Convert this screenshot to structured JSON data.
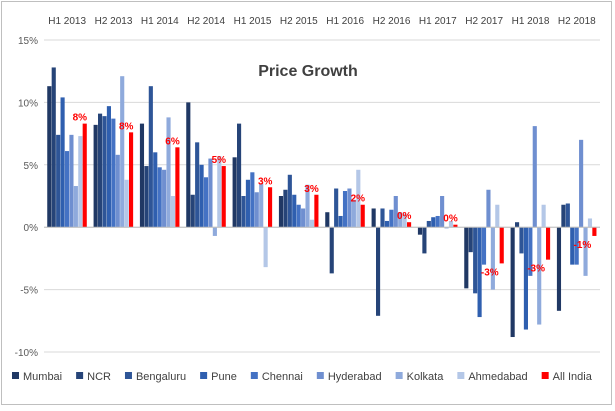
{
  "chart_data": {
    "type": "bar",
    "title": "Price Growth",
    "categories": [
      "H1 2013",
      "H2 2013",
      "H1 2014",
      "H2 2014",
      "H1 2015",
      "H2 2015",
      "H1 2016",
      "H2 2016",
      "H1 2017",
      "H2 2017",
      "H1 2018",
      "H2 2018"
    ],
    "ylim": [
      -10,
      15
    ],
    "yticks": [
      -10,
      -5,
      0,
      5,
      10,
      15
    ],
    "ytick_labels": [
      "-10%",
      "-5%",
      "0%",
      "5%",
      "10%",
      "15%"
    ],
    "xlabel": "",
    "ylabel": "",
    "grid": true,
    "legend_position": "bottom",
    "series": [
      {
        "name": "Mumbai",
        "color": "#203864",
        "values": [
          11.3,
          8.2,
          8.3,
          10.0,
          5.6,
          2.5,
          1.2,
          1.5,
          -0.6,
          -4.9,
          -8.8,
          -6.7
        ]
      },
      {
        "name": "NCR",
        "color": "#264478",
        "values": [
          12.8,
          9.1,
          4.9,
          2.6,
          8.3,
          3.0,
          -3.7,
          -7.1,
          -2.1,
          -2.0,
          0.4,
          1.8
        ]
      },
      {
        "name": "Bengaluru",
        "color": "#2E5597",
        "values": [
          7.4,
          8.9,
          11.3,
          6.8,
          2.5,
          4.2,
          3.1,
          1.5,
          0.5,
          -5.3,
          -2.1,
          1.9
        ]
      },
      {
        "name": "Pune",
        "color": "#2F5FAF",
        "values": [
          10.4,
          9.7,
          6.0,
          5.0,
          3.8,
          2.6,
          0.9,
          0.5,
          0.8,
          -7.2,
          -8.2,
          -3.0
        ]
      },
      {
        "name": "Chennai",
        "color": "#4472C4",
        "values": [
          6.1,
          8.7,
          4.8,
          4.0,
          4.4,
          1.8,
          2.9,
          1.4,
          0.9,
          -3.0,
          -3.9,
          -3.0
        ]
      },
      {
        "name": "Hyderabad",
        "color": "#6F8FD0",
        "values": [
          7.4,
          5.8,
          4.6,
          5.5,
          2.8,
          1.5,
          3.1,
          2.5,
          2.5,
          3.0,
          8.1,
          7.0
        ]
      },
      {
        "name": "Kolkata",
        "color": "#8FAADC",
        "values": [
          3.3,
          12.1,
          8.8,
          -0.7,
          3.5,
          3.4,
          2.2,
          1.2,
          -0.1,
          -5.0,
          -7.8,
          -3.9
        ]
      },
      {
        "name": "Ahmedabad",
        "color": "#B4C7E7",
        "values": [
          7.3,
          3.8,
          2.5,
          5.7,
          -3.2,
          0.6,
          4.6,
          1.1,
          0.5,
          1.8,
          1.8,
          0.7
        ]
      },
      {
        "name": "All India",
        "color": "#FF0000",
        "values": [
          8.3,
          7.6,
          6.4,
          4.9,
          3.2,
          2.6,
          1.8,
          0.4,
          0.2,
          -2.9,
          -2.6,
          -0.7
        ]
      }
    ],
    "data_labels": {
      "series": "All India",
      "color": "#FF0000",
      "labels": [
        "8%",
        "8%",
        "6%",
        "5%",
        "3%",
        "3%",
        "2%",
        "0%",
        "0%",
        "-3%",
        "-3%",
        "-1%"
      ]
    }
  }
}
